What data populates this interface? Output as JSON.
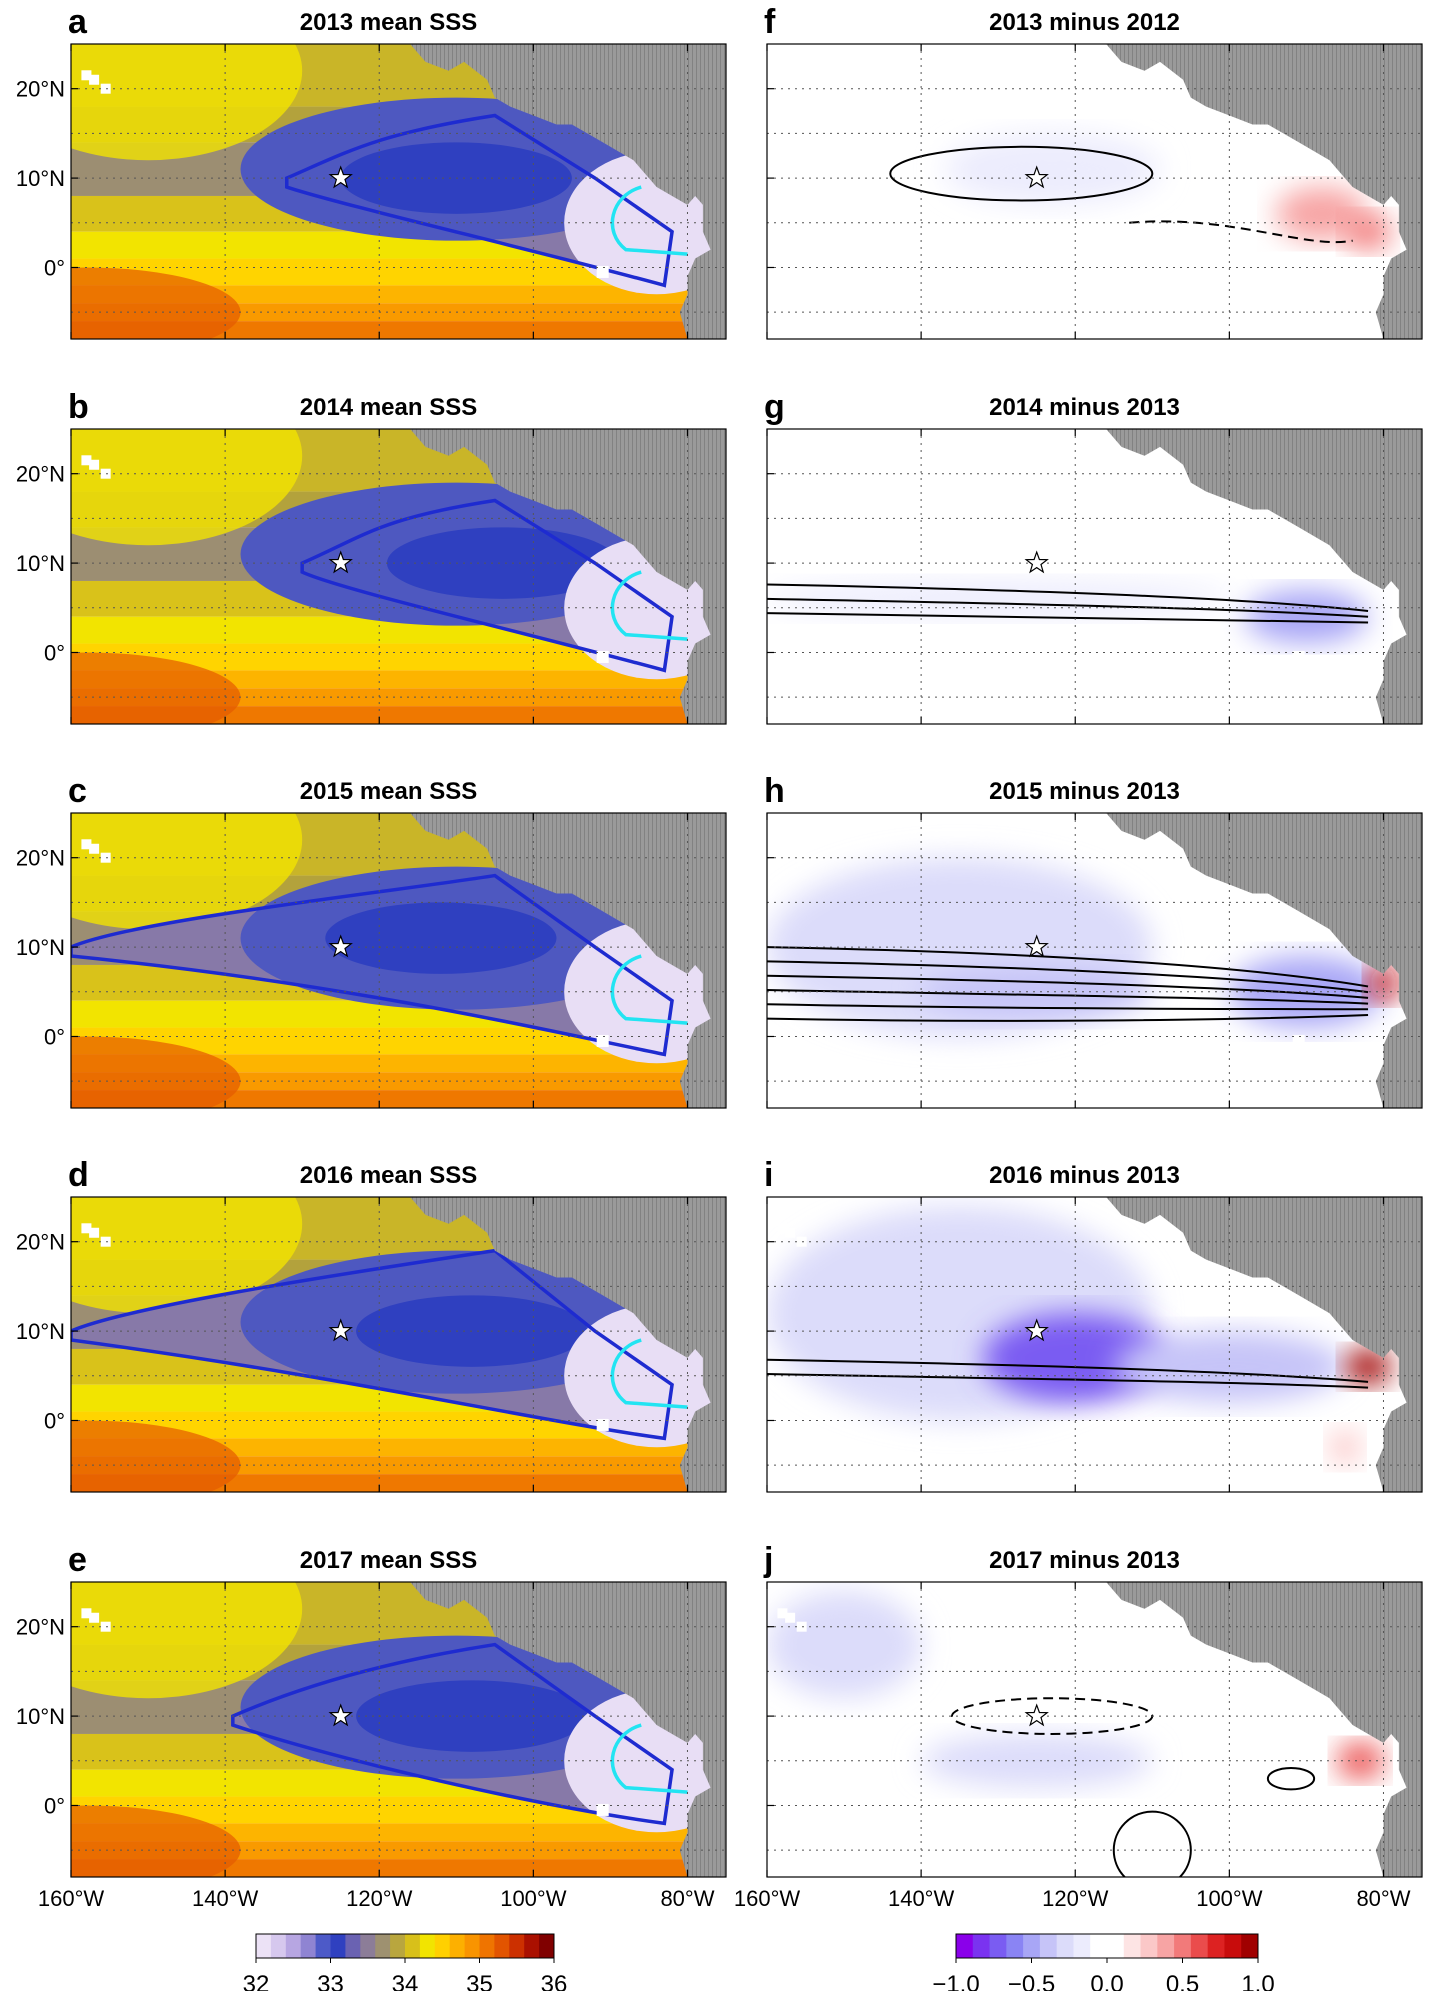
{
  "chart_data": {
    "type": "heatmap",
    "description_note": "",
    "panels": [
      {
        "letter": "a",
        "title": "2013 mean SSS",
        "kind": "mean",
        "blue_contour": {
          "west": -132,
          "north": 17,
          "south": 2,
          "tip_lat": 10
        },
        "cyan_contour": true,
        "fresh_core": {
          "lon": -110,
          "lat": 10
        }
      },
      {
        "letter": "b",
        "title": "2014 mean SSS",
        "kind": "mean",
        "blue_contour": {
          "west": -130,
          "north": 17,
          "south": 2,
          "tip_lat": 10
        },
        "cyan_contour": true,
        "fresh_core": {
          "lon": -104,
          "lat": 10
        }
      },
      {
        "letter": "c",
        "title": "2015 mean SSS",
        "kind": "mean",
        "blue_contour": {
          "west": -160,
          "north": 18,
          "south": 1,
          "tip_lat": 10
        },
        "cyan_contour": true,
        "fresh_core": {
          "lon": -112,
          "lat": 11
        }
      },
      {
        "letter": "d",
        "title": "2016 mean SSS",
        "kind": "mean",
        "blue_contour": {
          "west": -160,
          "north": 19,
          "south": 0,
          "tip_lat": 10
        },
        "cyan_contour": true,
        "fresh_core": {
          "lon": -108,
          "lat": 10
        }
      },
      {
        "letter": "e",
        "title": "2017 mean SSS",
        "kind": "mean",
        "blue_contour": {
          "west": -139,
          "north": 18,
          "south": 0,
          "tip_lat": 10
        },
        "cyan_contour": true,
        "fresh_core": {
          "lon": -108,
          "lat": 10
        }
      },
      {
        "letter": "f",
        "title": "2013 minus 2012",
        "kind": "diff",
        "anomalies": [
          {
            "lon": -123,
            "lat": 11,
            "rx": 14,
            "ry": 4,
            "value": -0.2
          },
          {
            "lon": -88,
            "lat": 6,
            "rx": 6,
            "ry": 3,
            "value": 0.4
          },
          {
            "lon": -82,
            "lat": 4,
            "rx": 3,
            "ry": 2,
            "value": 0.5
          }
        ]
      },
      {
        "letter": "g",
        "title": "2014 minus 2013",
        "kind": "diff",
        "anomalies": [
          {
            "lon": -130,
            "lat": 6,
            "rx": 30,
            "ry": 2,
            "value": -0.15
          },
          {
            "lon": -90,
            "lat": 4,
            "rx": 8,
            "ry": 3,
            "value": -0.5
          },
          {
            "lon": -135,
            "lat": 20,
            "rx": 12,
            "ry": 3,
            "value": 0.08
          }
        ]
      },
      {
        "letter": "h",
        "title": "2015 minus 2013",
        "kind": "diff",
        "anomalies": [
          {
            "lon": -135,
            "lat": 10,
            "rx": 25,
            "ry": 10,
            "value": -0.25
          },
          {
            "lon": -125,
            "lat": 5,
            "rx": 15,
            "ry": 3,
            "value": -0.35
          },
          {
            "lon": -90,
            "lat": 5,
            "rx": 10,
            "ry": 4,
            "value": -0.55
          },
          {
            "lon": -80,
            "lat": 6,
            "rx": 2,
            "ry": 2,
            "value": 0.8
          }
        ]
      },
      {
        "letter": "i",
        "title": "2016 minus 2013",
        "kind": "diff",
        "anomalies": [
          {
            "lon": -135,
            "lat": 12,
            "rx": 25,
            "ry": 12,
            "value": -0.3
          },
          {
            "lon": -120,
            "lat": 7,
            "rx": 12,
            "ry": 5,
            "value": -0.75
          },
          {
            "lon": -100,
            "lat": 6,
            "rx": 15,
            "ry": 4,
            "value": -0.4
          },
          {
            "lon": -82,
            "lat": 6,
            "rx": 3,
            "ry": 2,
            "value": 0.9
          },
          {
            "lon": -85,
            "lat": -3,
            "rx": 2,
            "ry": 2,
            "value": 0.3
          }
        ]
      },
      {
        "letter": "j",
        "title": "2017 minus 2013",
        "kind": "diff",
        "anomalies": [
          {
            "lon": -150,
            "lat": 18,
            "rx": 10,
            "ry": 6,
            "value": -0.3
          },
          {
            "lon": -125,
            "lat": 5,
            "rx": 15,
            "ry": 3,
            "value": -0.3
          },
          {
            "lon": -83,
            "lat": 5,
            "rx": 3,
            "ry": 2,
            "value": 0.6
          }
        ]
      }
    ],
    "x_ticks": [
      {
        "lon": -160,
        "label": "160°W"
      },
      {
        "lon": -140,
        "label": "140°W"
      },
      {
        "lon": -120,
        "label": "120°W"
      },
      {
        "lon": -100,
        "label": "100°W"
      },
      {
        "lon": -80,
        "label": "80°W"
      }
    ],
    "y_ticks": [
      {
        "lat": 20,
        "label": "20°N"
      },
      {
        "lat": 10,
        "label": "10°N"
      },
      {
        "lat": 0,
        "label": "0°"
      }
    ],
    "lon_range": [
      -160,
      -75
    ],
    "lat_range": [
      -8,
      25
    ],
    "star": {
      "lon": -125,
      "lat": 10
    },
    "sss_colorbar": {
      "ticks": [
        "32",
        "33",
        "34",
        "35",
        "36"
      ],
      "range": [
        32,
        36
      ],
      "colors": [
        "#ece2f6",
        "#d6c8ee",
        "#b7a6e2",
        "#8f84d2",
        "#4d5ac8",
        "#2f40c0",
        "#6a62b2",
        "#8c7d98",
        "#9e9170",
        "#b9a63e",
        "#d8c01a",
        "#f2e400",
        "#ffd000",
        "#fdb000",
        "#f99400",
        "#ef7400",
        "#e25400",
        "#cc3000",
        "#aa1000",
        "#800000"
      ]
    },
    "diff_colorbar": {
      "ticks": [
        "−1.0",
        "−0.5",
        "0.0",
        "0.5",
        "1.0"
      ],
      "range": [
        -1,
        1
      ],
      "colors": [
        "#8a00ea",
        "#7a33f0",
        "#7a5cf2",
        "#8a84f4",
        "#a8a6f6",
        "#c6c4f8",
        "#dcdcfa",
        "#ececfd",
        "#ffffff",
        "#ffffff",
        "#fde4e4",
        "#fbc8c8",
        "#f7a4a4",
        "#f27a7a",
        "#ea4c4c",
        "#dd2222",
        "#c80c0c",
        "#a00000"
      ]
    }
  }
}
